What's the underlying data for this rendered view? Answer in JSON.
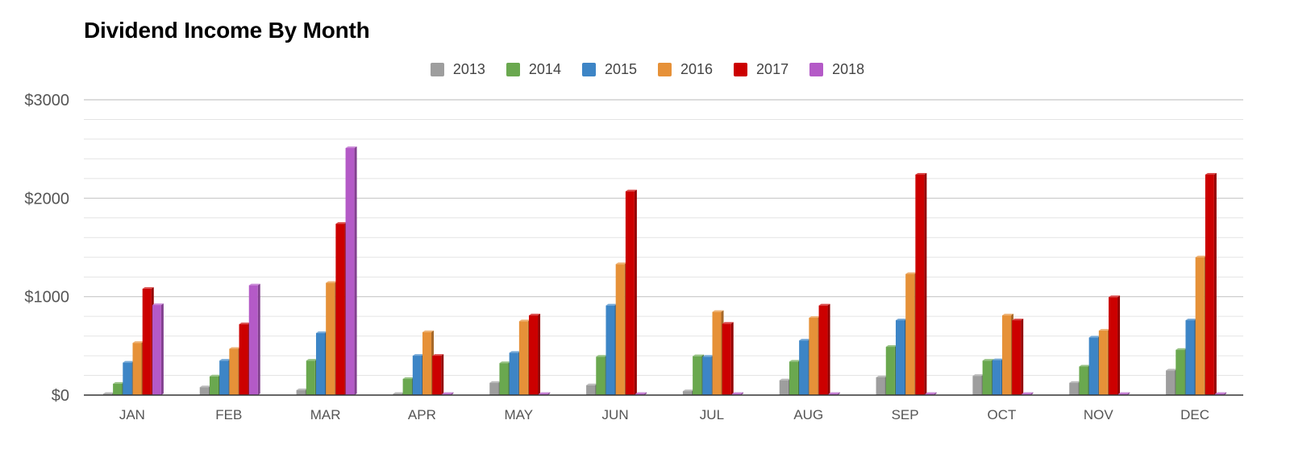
{
  "chart_data": {
    "type": "bar",
    "title": "Dividend Income By Month",
    "xlabel": "",
    "ylabel": "",
    "ylim": [
      0,
      3000
    ],
    "y_ticks": [
      "$0",
      "$1000",
      "$2000",
      "$3000"
    ],
    "y_tick_values": [
      0,
      1000,
      2000,
      3000
    ],
    "grid": true,
    "legend_position": "top-center",
    "categories": [
      "JAN",
      "FEB",
      "MAR",
      "APR",
      "MAY",
      "JUN",
      "JUL",
      "AUG",
      "SEP",
      "OCT",
      "NOV",
      "DEC"
    ],
    "series": [
      {
        "name": "2013",
        "color": "#9e9e9e",
        "values": [
          5,
          80,
          50,
          5,
          125,
          100,
          40,
          150,
          180,
          195,
          125,
          250
        ]
      },
      {
        "name": "2014",
        "color": "#6aa84f",
        "values": [
          115,
          190,
          350,
          165,
          325,
          390,
          395,
          340,
          490,
          350,
          290,
          460
        ]
      },
      {
        "name": "2015",
        "color": "#3d85c6",
        "values": [
          330,
          350,
          630,
          400,
          430,
          910,
          390,
          555,
          760,
          355,
          585,
          760
        ]
      },
      {
        "name": "2016",
        "color": "#e69138",
        "values": [
          530,
          470,
          1140,
          640,
          750,
          1330,
          845,
          785,
          1230,
          810,
          655,
          1400
        ]
      },
      {
        "name": "2017",
        "color": "#cc0000",
        "values": [
          1080,
          720,
          1740,
          400,
          810,
          2070,
          725,
          910,
          2240,
          760,
          995,
          2240
        ]
      },
      {
        "name": "2018",
        "color": "#b45ac7",
        "values": [
          915,
          1115,
          2510,
          5,
          5,
          5,
          5,
          5,
          5,
          5,
          5,
          5
        ]
      }
    ]
  }
}
